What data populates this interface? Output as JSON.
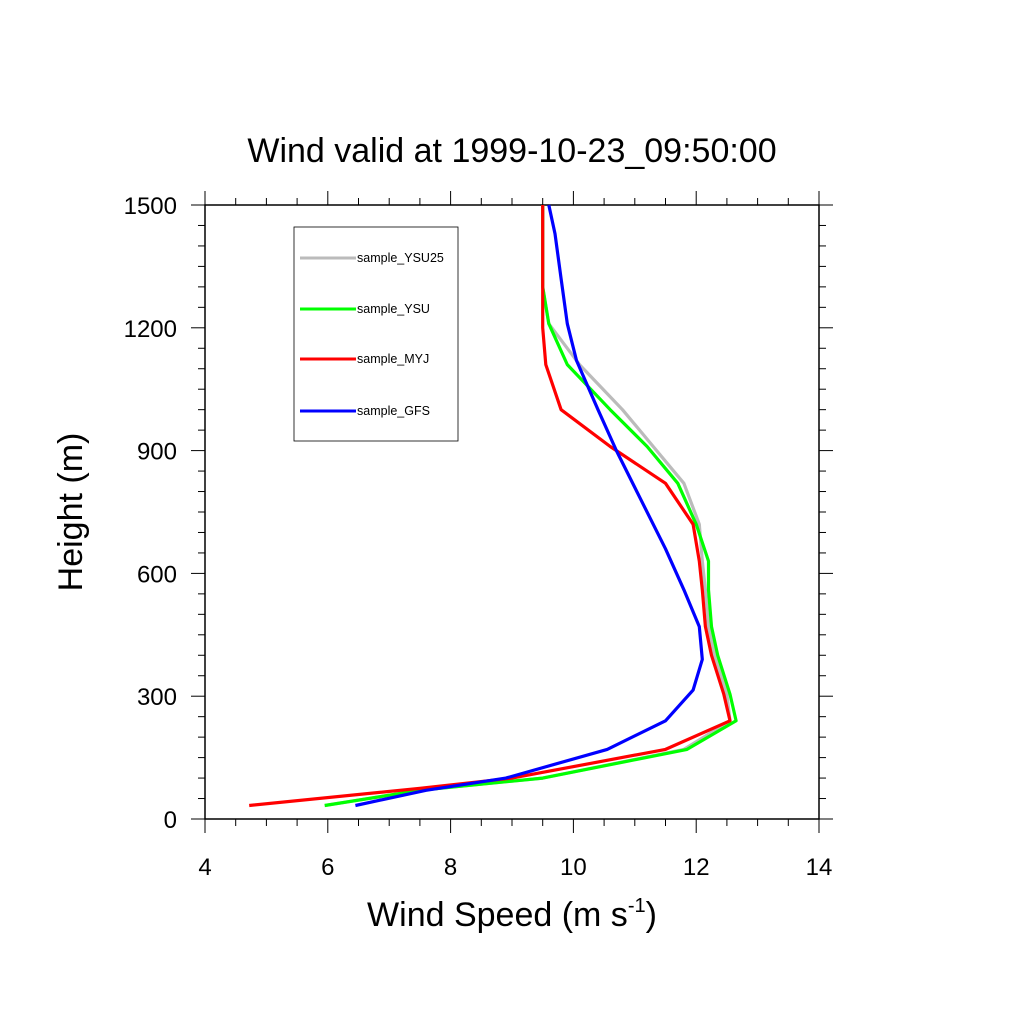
{
  "chart_data": {
    "type": "line",
    "title": "Wind valid at 1999-10-23_09:50:00",
    "xlabel": "Wind Speed (m s",
    "xlabel_sup": "-1",
    "xlabel_end": ")",
    "ylabel": "Height (m)",
    "xlim": [
      4,
      14
    ],
    "ylim": [
      0,
      1500
    ],
    "x_ticks": [
      4,
      6,
      8,
      10,
      12,
      14
    ],
    "y_ticks": [
      0,
      300,
      600,
      900,
      1200,
      1500
    ],
    "grid": false,
    "legend_position": "top-left",
    "series": [
      {
        "name": "sample_YSU25",
        "color": "#bbbbbb",
        "points": [
          [
            5.95,
            33
          ],
          [
            7.5,
            70
          ],
          [
            9.5,
            100
          ],
          [
            11.8,
            170
          ],
          [
            12.55,
            240
          ],
          [
            12.5,
            305
          ],
          [
            12.3,
            400
          ],
          [
            12.2,
            470
          ],
          [
            12.15,
            560
          ],
          [
            12.1,
            630
          ],
          [
            12.05,
            720
          ],
          [
            11.8,
            820
          ],
          [
            11.3,
            910
          ],
          [
            10.8,
            1000
          ],
          [
            10.1,
            1110
          ],
          [
            9.6,
            1210
          ],
          [
            9.5,
            1300
          ],
          [
            9.5,
            1500
          ]
        ]
      },
      {
        "name": "sample_YSU",
        "color": "#00ff00",
        "points": [
          [
            5.95,
            33
          ],
          [
            7.5,
            70
          ],
          [
            9.5,
            100
          ],
          [
            11.85,
            170
          ],
          [
            12.65,
            240
          ],
          [
            12.55,
            305
          ],
          [
            12.35,
            400
          ],
          [
            12.25,
            470
          ],
          [
            12.2,
            560
          ],
          [
            12.2,
            630
          ],
          [
            12.0,
            720
          ],
          [
            11.7,
            820
          ],
          [
            11.2,
            910
          ],
          [
            10.6,
            1000
          ],
          [
            9.9,
            1110
          ],
          [
            9.6,
            1210
          ],
          [
            9.5,
            1300
          ],
          [
            9.5,
            1500
          ]
        ]
      },
      {
        "name": "sample_MYJ",
        "color": "#ff0000",
        "points": [
          [
            4.72,
            33
          ],
          [
            7.5,
            75
          ],
          [
            9.0,
            100
          ],
          [
            11.5,
            170
          ],
          [
            12.55,
            240
          ],
          [
            12.45,
            305
          ],
          [
            12.25,
            400
          ],
          [
            12.15,
            470
          ],
          [
            12.1,
            560
          ],
          [
            12.05,
            630
          ],
          [
            11.95,
            720
          ],
          [
            11.5,
            820
          ],
          [
            10.6,
            910
          ],
          [
            9.8,
            1000
          ],
          [
            9.55,
            1110
          ],
          [
            9.5,
            1200
          ],
          [
            9.5,
            1300
          ],
          [
            9.5,
            1500
          ]
        ]
      },
      {
        "name": "sample_GFS",
        "color": "#0000ff",
        "points": [
          [
            6.45,
            33
          ],
          [
            7.6,
            70
          ],
          [
            8.9,
            100
          ],
          [
            10.55,
            170
          ],
          [
            11.5,
            240
          ],
          [
            11.95,
            315
          ],
          [
            12.1,
            390
          ],
          [
            12.05,
            470
          ],
          [
            11.8,
            560
          ],
          [
            11.5,
            660
          ],
          [
            11.1,
            780
          ],
          [
            10.7,
            900
          ],
          [
            10.4,
            1000
          ],
          [
            10.05,
            1120
          ],
          [
            9.9,
            1210
          ],
          [
            9.8,
            1320
          ],
          [
            9.7,
            1430
          ],
          [
            9.6,
            1500
          ]
        ]
      }
    ]
  }
}
